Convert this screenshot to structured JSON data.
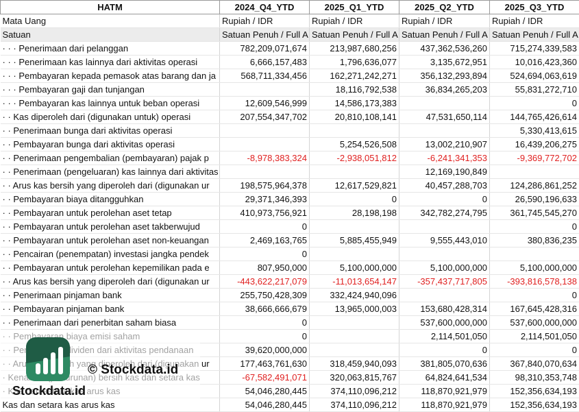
{
  "table": {
    "header": [
      "HATM",
      "2024_Q4_YTD",
      "2025_Q1_YTD",
      "2025_Q2_YTD",
      "2025_Q3_YTD"
    ],
    "rows": [
      [
        "Mata Uang",
        "Rupiah / IDR",
        "Rupiah / IDR",
        "Rupiah / IDR",
        "Rupiah / IDR"
      ],
      [
        "Satuan",
        "Satuan Penuh / Full A",
        "Satuan Penuh / Full A",
        "Satuan Penuh / Full A",
        "Satuan Penuh / Full A"
      ],
      [
        "· · · Penerimaan dari pelanggan",
        "782,209,071,674",
        "213,987,680,256",
        "437,362,536,260",
        "715,274,339,583"
      ],
      [
        "· · · Penerimaan kas lainnya dari aktivitas operasi",
        "6,666,157,483",
        "1,796,636,077",
        "3,135,672,951",
        "10,016,423,360"
      ],
      [
        "· · · Pembayaran kepada pemasok atas barang dan ja",
        "568,711,334,456",
        "162,271,242,271",
        "356,132,293,894",
        "524,694,063,619"
      ],
      [
        "· · · Pembayaran gaji dan tunjangan",
        null,
        "18,116,792,538",
        "36,834,265,203",
        "55,831,272,710"
      ],
      [
        "· · · Pembayaran kas lainnya untuk beban operasi",
        "12,609,546,999",
        "14,586,173,383",
        null,
        "0"
      ],
      [
        "· · Kas diperoleh dari (digunakan untuk) operasi",
        "207,554,347,702",
        "20,810,108,141",
        "47,531,650,114",
        "144,765,426,614"
      ],
      [
        "· · Penerimaan bunga dari aktivitas operasi",
        null,
        null,
        null,
        "5,330,413,615"
      ],
      [
        "· · Pembayaran bunga dari aktivitas operasi",
        null,
        "5,254,526,508",
        "13,002,210,907",
        "16,439,206,275"
      ],
      [
        "· · Penerimaan pengembalian (pembayaran) pajak p",
        "-8,978,383,324",
        "-2,938,051,812",
        "-6,241,341,353",
        "-9,369,772,702"
      ],
      [
        "· · Penerimaan (pengeluaran) kas lainnya dari aktivitas operasi",
        null,
        null,
        "12,169,190,849",
        null
      ],
      [
        "· · Arus kas bersih yang diperoleh dari (digunakan ur",
        "198,575,964,378",
        "12,617,529,821",
        "40,457,288,703",
        "124,286,861,252"
      ],
      [
        "· · Pembayaran biaya ditangguhkan",
        "29,371,346,393",
        "0",
        "0",
        "26,590,196,633"
      ],
      [
        "· · Pembayaran untuk perolehan aset tetap",
        "410,973,756,921",
        "28,198,198",
        "342,782,274,795",
        "361,745,545,270"
      ],
      [
        "· · Pembayaran untuk perolehan aset takberwujud",
        "0",
        null,
        null,
        "0"
      ],
      [
        "· · Pembayaran untuk perolehan aset non-keuangan",
        "2,469,163,765",
        "5,885,455,949",
        "9,555,443,010",
        "380,836,235"
      ],
      [
        "· · Pencairan (penempatan) investasi jangka pendek",
        "0",
        null,
        null,
        null
      ],
      [
        "· · Pembayaran untuk perolehan kepemilikan pada e",
        "807,950,000",
        "5,100,000,000",
        "5,100,000,000",
        "5,100,000,000"
      ],
      [
        "· · Arus kas bersih yang diperoleh dari (digunakan ur",
        "-443,622,217,079",
        "-11,013,654,147",
        "-357,437,717,805",
        "-393,816,578,138"
      ],
      [
        "· · Penerimaan pinjaman bank",
        "255,750,428,309",
        "332,424,940,096",
        null,
        "0"
      ],
      [
        "· · Pembayaran pinjaman bank",
        "38,666,666,679",
        "13,965,000,003",
        "153,680,428,314",
        "167,645,428,316"
      ],
      [
        "· · Penerimaan dari penerbitan saham biasa",
        "0",
        null,
        "537,600,000,000",
        "537,600,000,000"
      ],
      [
        "· · Pembayaran biaya emisi saham",
        "0",
        null,
        "2,114,501,050",
        "2,114,501,050"
      ],
      [
        "· · Pembayaran dividen dari aktivitas pendanaan",
        "39,620,000,000",
        null,
        "0",
        "0"
      ],
      [
        "· · Arus kas bersih yang diperoleh dari (digunakan ur",
        "177,463,761,630",
        "318,459,940,093",
        "381,805,070,636",
        "367,840,070,634"
      ],
      [
        "· Kenaikan (penurunan) bersih kas dan setara kas",
        "-67,582,491,071",
        "320,063,815,767",
        "64,824,641,534",
        "98,310,353,748"
      ],
      [
        "· Kas dan setara kas arus kas",
        "54,046,280,445",
        "374,110,096,212",
        "118,870,921,979",
        "152,356,634,193"
      ],
      [
        "Kas dan setara kas arus kas",
        "54,046,280,445",
        "374,110,096,212",
        "118,870,921,979",
        "152,356,634,193"
      ]
    ]
  },
  "watermark": {
    "copyright": "© Stockdata.id",
    "brand": "Stockdata.id"
  }
}
